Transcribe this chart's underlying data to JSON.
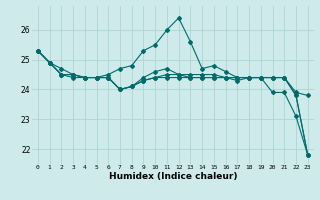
{
  "title": "",
  "xlabel": "Humidex (Indice chaleur)",
  "ylabel": "",
  "bg_color": "#ceeaea",
  "grid_color": "#add4d4",
  "line_color": "#006b6b",
  "xlim_min": -0.5,
  "xlim_max": 23.5,
  "ylim_min": 21.5,
  "ylim_max": 26.8,
  "yticks": [
    22,
    23,
    24,
    25,
    26
  ],
  "xtick_labels": [
    "0",
    "1",
    "2",
    "3",
    "4",
    "5",
    "6",
    "7",
    "8",
    "9",
    "10",
    "11",
    "12",
    "13",
    "14",
    "15",
    "16",
    "17",
    "18",
    "19",
    "20",
    "21",
    "22",
    "23"
  ],
  "series1": [
    25.3,
    24.9,
    24.5,
    24.5,
    24.4,
    24.4,
    24.4,
    24.0,
    24.1,
    24.3,
    24.4,
    24.4,
    24.4,
    24.4,
    24.4,
    24.4,
    24.4,
    24.4,
    24.4,
    24.4,
    24.4,
    24.4,
    23.9,
    23.8
  ],
  "series2": [
    25.3,
    24.9,
    24.7,
    24.5,
    24.4,
    24.4,
    24.5,
    24.7,
    24.8,
    25.3,
    25.5,
    26.0,
    26.4,
    25.6,
    24.7,
    24.8,
    24.6,
    24.4,
    24.4,
    24.4,
    23.9,
    23.9,
    23.1,
    21.8
  ],
  "series3": [
    25.3,
    24.9,
    24.5,
    24.4,
    24.4,
    24.4,
    24.4,
    24.0,
    24.1,
    24.3,
    24.4,
    24.5,
    24.5,
    24.5,
    24.5,
    24.5,
    24.4,
    24.4,
    24.4,
    24.4,
    24.4,
    24.4,
    23.8,
    21.8
  ],
  "series4": [
    25.3,
    24.9,
    24.5,
    24.5,
    24.4,
    24.4,
    24.4,
    24.0,
    24.1,
    24.4,
    24.6,
    24.7,
    24.5,
    24.4,
    24.4,
    24.4,
    24.4,
    24.3,
    24.4,
    24.4,
    24.4,
    24.4,
    23.8,
    21.8
  ],
  "xlabel_fontsize": 6.5,
  "xlabel_fontweight": "bold",
  "ytick_fontsize": 5.5,
  "xtick_fontsize": 4.5,
  "linewidth": 0.8,
  "markersize": 2.0
}
